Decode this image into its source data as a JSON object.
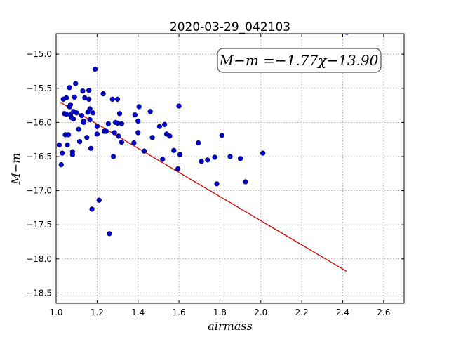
{
  "chart_data": {
    "type": "scatter",
    "title": "2020-03-29_042103",
    "xlabel": "airmass",
    "ylabel": "M−m",
    "xlim": [
      1.0,
      2.7
    ],
    "ylim": [
      -18.65,
      -14.7
    ],
    "y_inverted": true,
    "grid": true,
    "xticks": [
      1.0,
      1.2,
      1.4,
      1.6,
      1.8,
      2.0,
      2.2,
      2.4,
      2.6
    ],
    "xtick_labels": [
      "1.0",
      "1.2",
      "1.4",
      "1.6",
      "1.8",
      "2.0",
      "2.2",
      "2.4",
      "2.6"
    ],
    "yticks": [
      -15.0,
      -15.5,
      -16.0,
      -16.5,
      -17.0,
      -17.5,
      -18.0,
      -18.5
    ],
    "ytick_labels": [
      "−15.0",
      "−15.5",
      "−16.0",
      "−16.5",
      "−17.0",
      "−17.5",
      "−18.0",
      "−18.5"
    ],
    "annotation": "M−m =−1.77χ−13.90",
    "colors": {
      "points": "#0000cc",
      "fit_line": "#dd0000"
    },
    "fit": {
      "slope": -1.77,
      "intercept": -13.9,
      "x_range": [
        1.02,
        2.42
      ]
    },
    "series": [
      {
        "x": [
          1.015,
          1.025,
          1.03,
          1.035,
          1.04,
          1.045,
          1.05,
          1.05,
          1.055,
          1.06,
          1.065,
          1.065,
          1.07,
          1.07,
          1.075,
          1.08,
          1.08,
          1.085,
          1.085,
          1.09,
          1.095,
          1.1,
          1.11,
          1.115,
          1.125,
          1.13,
          1.135,
          1.135,
          1.14,
          1.15,
          1.155,
          1.16,
          1.16,
          1.165,
          1.165,
          1.17,
          1.175,
          1.18,
          1.19,
          1.2,
          1.2,
          1.21,
          1.23,
          1.235,
          1.245,
          1.255,
          1.26,
          1.275,
          1.28,
          1.285,
          1.29,
          1.3,
          1.3,
          1.305,
          1.31,
          1.32,
          1.32,
          1.38,
          1.385,
          1.4,
          1.4,
          1.405,
          1.43,
          1.46,
          1.47,
          1.505,
          1.52,
          1.53,
          1.54,
          1.555,
          1.575,
          1.595,
          1.6,
          1.605,
          1.695,
          1.71,
          1.74,
          1.775,
          1.785,
          1.81,
          1.85,
          1.9,
          1.925,
          2.01,
          2.42
        ],
        "y": [
          -16.33,
          -16.62,
          -16.45,
          -15.66,
          -15.87,
          -16.18,
          -15.64,
          -15.88,
          -16.33,
          -16.18,
          -15.49,
          -15.77,
          -15.74,
          -15.89,
          -15.93,
          -16.43,
          -16.47,
          -15.95,
          -15.84,
          -15.63,
          -15.43,
          -15.86,
          -16.1,
          -16.28,
          -15.9,
          -15.54,
          -15.98,
          -16.0,
          -15.64,
          -16.22,
          -15.85,
          -15.66,
          -15.53,
          -15.8,
          -15.96,
          -16.38,
          -17.27,
          -15.86,
          -15.22,
          -16.17,
          -16.06,
          -17.14,
          -15.58,
          -16.13,
          -16.13,
          -16.02,
          -17.63,
          -15.66,
          -16.5,
          -16.15,
          -16.0,
          -15.66,
          -16.01,
          -16.2,
          -15.87,
          -16.29,
          -16.02,
          -16.3,
          -15.89,
          -16.15,
          -15.98,
          -15.77,
          -16.42,
          -15.84,
          -16.22,
          -16.06,
          -16.54,
          -16.03,
          -16.17,
          -16.2,
          -16.41,
          -16.68,
          -15.76,
          -16.47,
          -16.3,
          -16.57,
          -16.55,
          -16.51,
          -16.9,
          -16.19,
          -16.5,
          -16.53,
          -16.87,
          -16.45,
          -14.68
        ]
      }
    ]
  }
}
